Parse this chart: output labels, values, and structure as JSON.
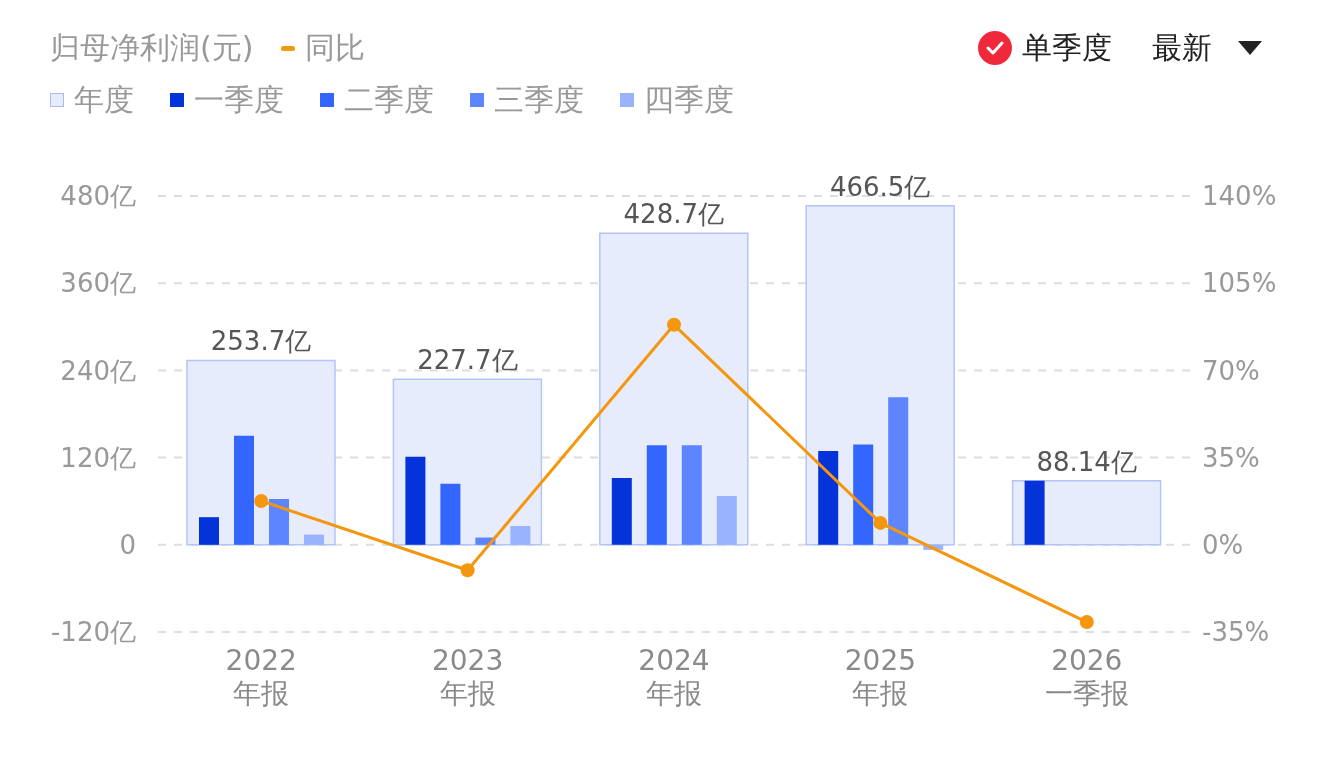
{
  "chart_data": {
    "type": "bar",
    "title": "归母净利润(元)",
    "categories": [
      "2022\n年报",
      "2023\n年报",
      "2024\n年报",
      "2025\n年报",
      "2026\n一季报"
    ],
    "series": [
      {
        "name": "同比",
        "type": "line",
        "axis": "y2",
        "color": "#f5960f",
        "values": [
          17.6,
          -10.2,
          88.3,
          8.8,
          -31
        ]
      },
      {
        "name": "年度",
        "color": "#e6ecfc",
        "values": [
          253.7,
          227.7,
          428.7,
          466.5,
          88.14
        ],
        "value_labels": [
          "253.7亿",
          "227.7亿",
          "428.7亿",
          "466.5亿",
          "88.14亿"
        ]
      },
      {
        "name": "一季度",
        "color": "#0433d9",
        "values": [
          38,
          121,
          92,
          129,
          88
        ]
      },
      {
        "name": "二季度",
        "color": "#3366ff",
        "values": [
          150,
          84,
          137,
          138,
          null
        ]
      },
      {
        "name": "三季度",
        "color": "#5c85ff",
        "values": [
          63,
          10,
          137,
          203,
          null
        ]
      },
      {
        "name": "四季度",
        "color": "#99b3ff",
        "values": [
          14,
          26,
          67,
          -7,
          null
        ]
      }
    ],
    "ylim": [
      -120,
      480
    ],
    "yticks": [
      {
        "value": -120,
        "label": "-120亿"
      },
      0,
      {
        "value": 120,
        "label": "120亿"
      },
      {
        "value": 240,
        "label": "240亿"
      },
      {
        "value": 360,
        "label": "360亿"
      },
      {
        "value": 480,
        "label": "480亿"
      }
    ],
    "y2lim": [
      -35,
      140
    ],
    "y2ticks": [
      {
        "value": -35,
        "label": "-35%"
      },
      {
        "value": 0,
        "label": "0%"
      },
      {
        "value": 35,
        "label": "35%"
      },
      {
        "value": 70,
        "label": "70%"
      },
      {
        "value": 105,
        "label": "105%"
      },
      {
        "value": 140,
        "label": "140%"
      }
    ],
    "grid": "y",
    "legend": "top left",
    "marker": "circle",
    "annotations": [
      "单季度",
      "最新"
    ]
  }
}
